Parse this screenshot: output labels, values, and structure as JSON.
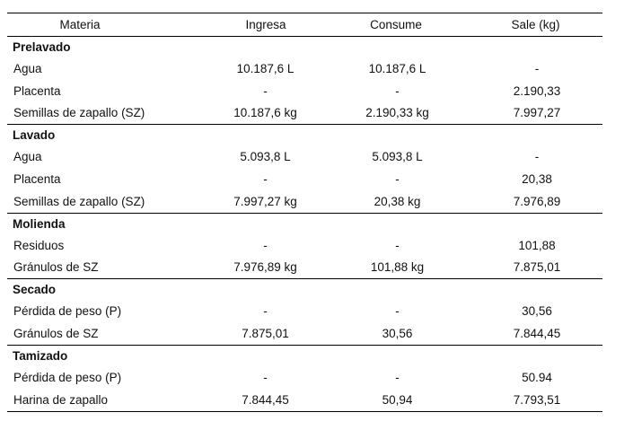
{
  "headers": [
    "Materia",
    "Ingresa",
    "Consume",
    "Sale (kg)"
  ],
  "sections": [
    {
      "title": "Prelavado",
      "rows": [
        [
          "Agua",
          "10.187,6 L",
          "10.187,6 L",
          "-"
        ],
        [
          "Placenta",
          "-",
          "-",
          "2.190,33"
        ],
        [
          "Semillas de zapallo (SZ)",
          "10.187,6 kg",
          "2.190,33 kg",
          "7.997,27"
        ]
      ]
    },
    {
      "title": "Lavado",
      "rows": [
        [
          "Agua",
          "5.093,8 L",
          "5.093,8 L",
          "-"
        ],
        [
          "Placenta",
          "-",
          "-",
          "20,38"
        ],
        [
          "Semillas de zapallo (SZ)",
          "7.997,27 kg",
          "20,38 kg",
          "7.976,89"
        ]
      ]
    },
    {
      "title": "Molienda",
      "rows": [
        [
          "Residuos",
          "-",
          "-",
          "101,88"
        ],
        [
          "Gránulos de SZ",
          "7.976,89 kg",
          "101,88 kg",
          "7.875,01"
        ]
      ]
    },
    {
      "title": "Secado",
      "rows": [
        [
          "Pérdida de peso (P)",
          "-",
          "-",
          "30,56"
        ],
        [
          "Gránulos de SZ",
          "7.875,01",
          "30,56",
          "7.844,45"
        ]
      ]
    },
    {
      "title": "Tamizado",
      "rows": [
        [
          "Pérdida de peso (P)",
          "-",
          "-",
          "50.94"
        ],
        [
          "Harina de zapallo",
          "7.844,45",
          "50,94",
          "7.793,51"
        ]
      ]
    }
  ]
}
